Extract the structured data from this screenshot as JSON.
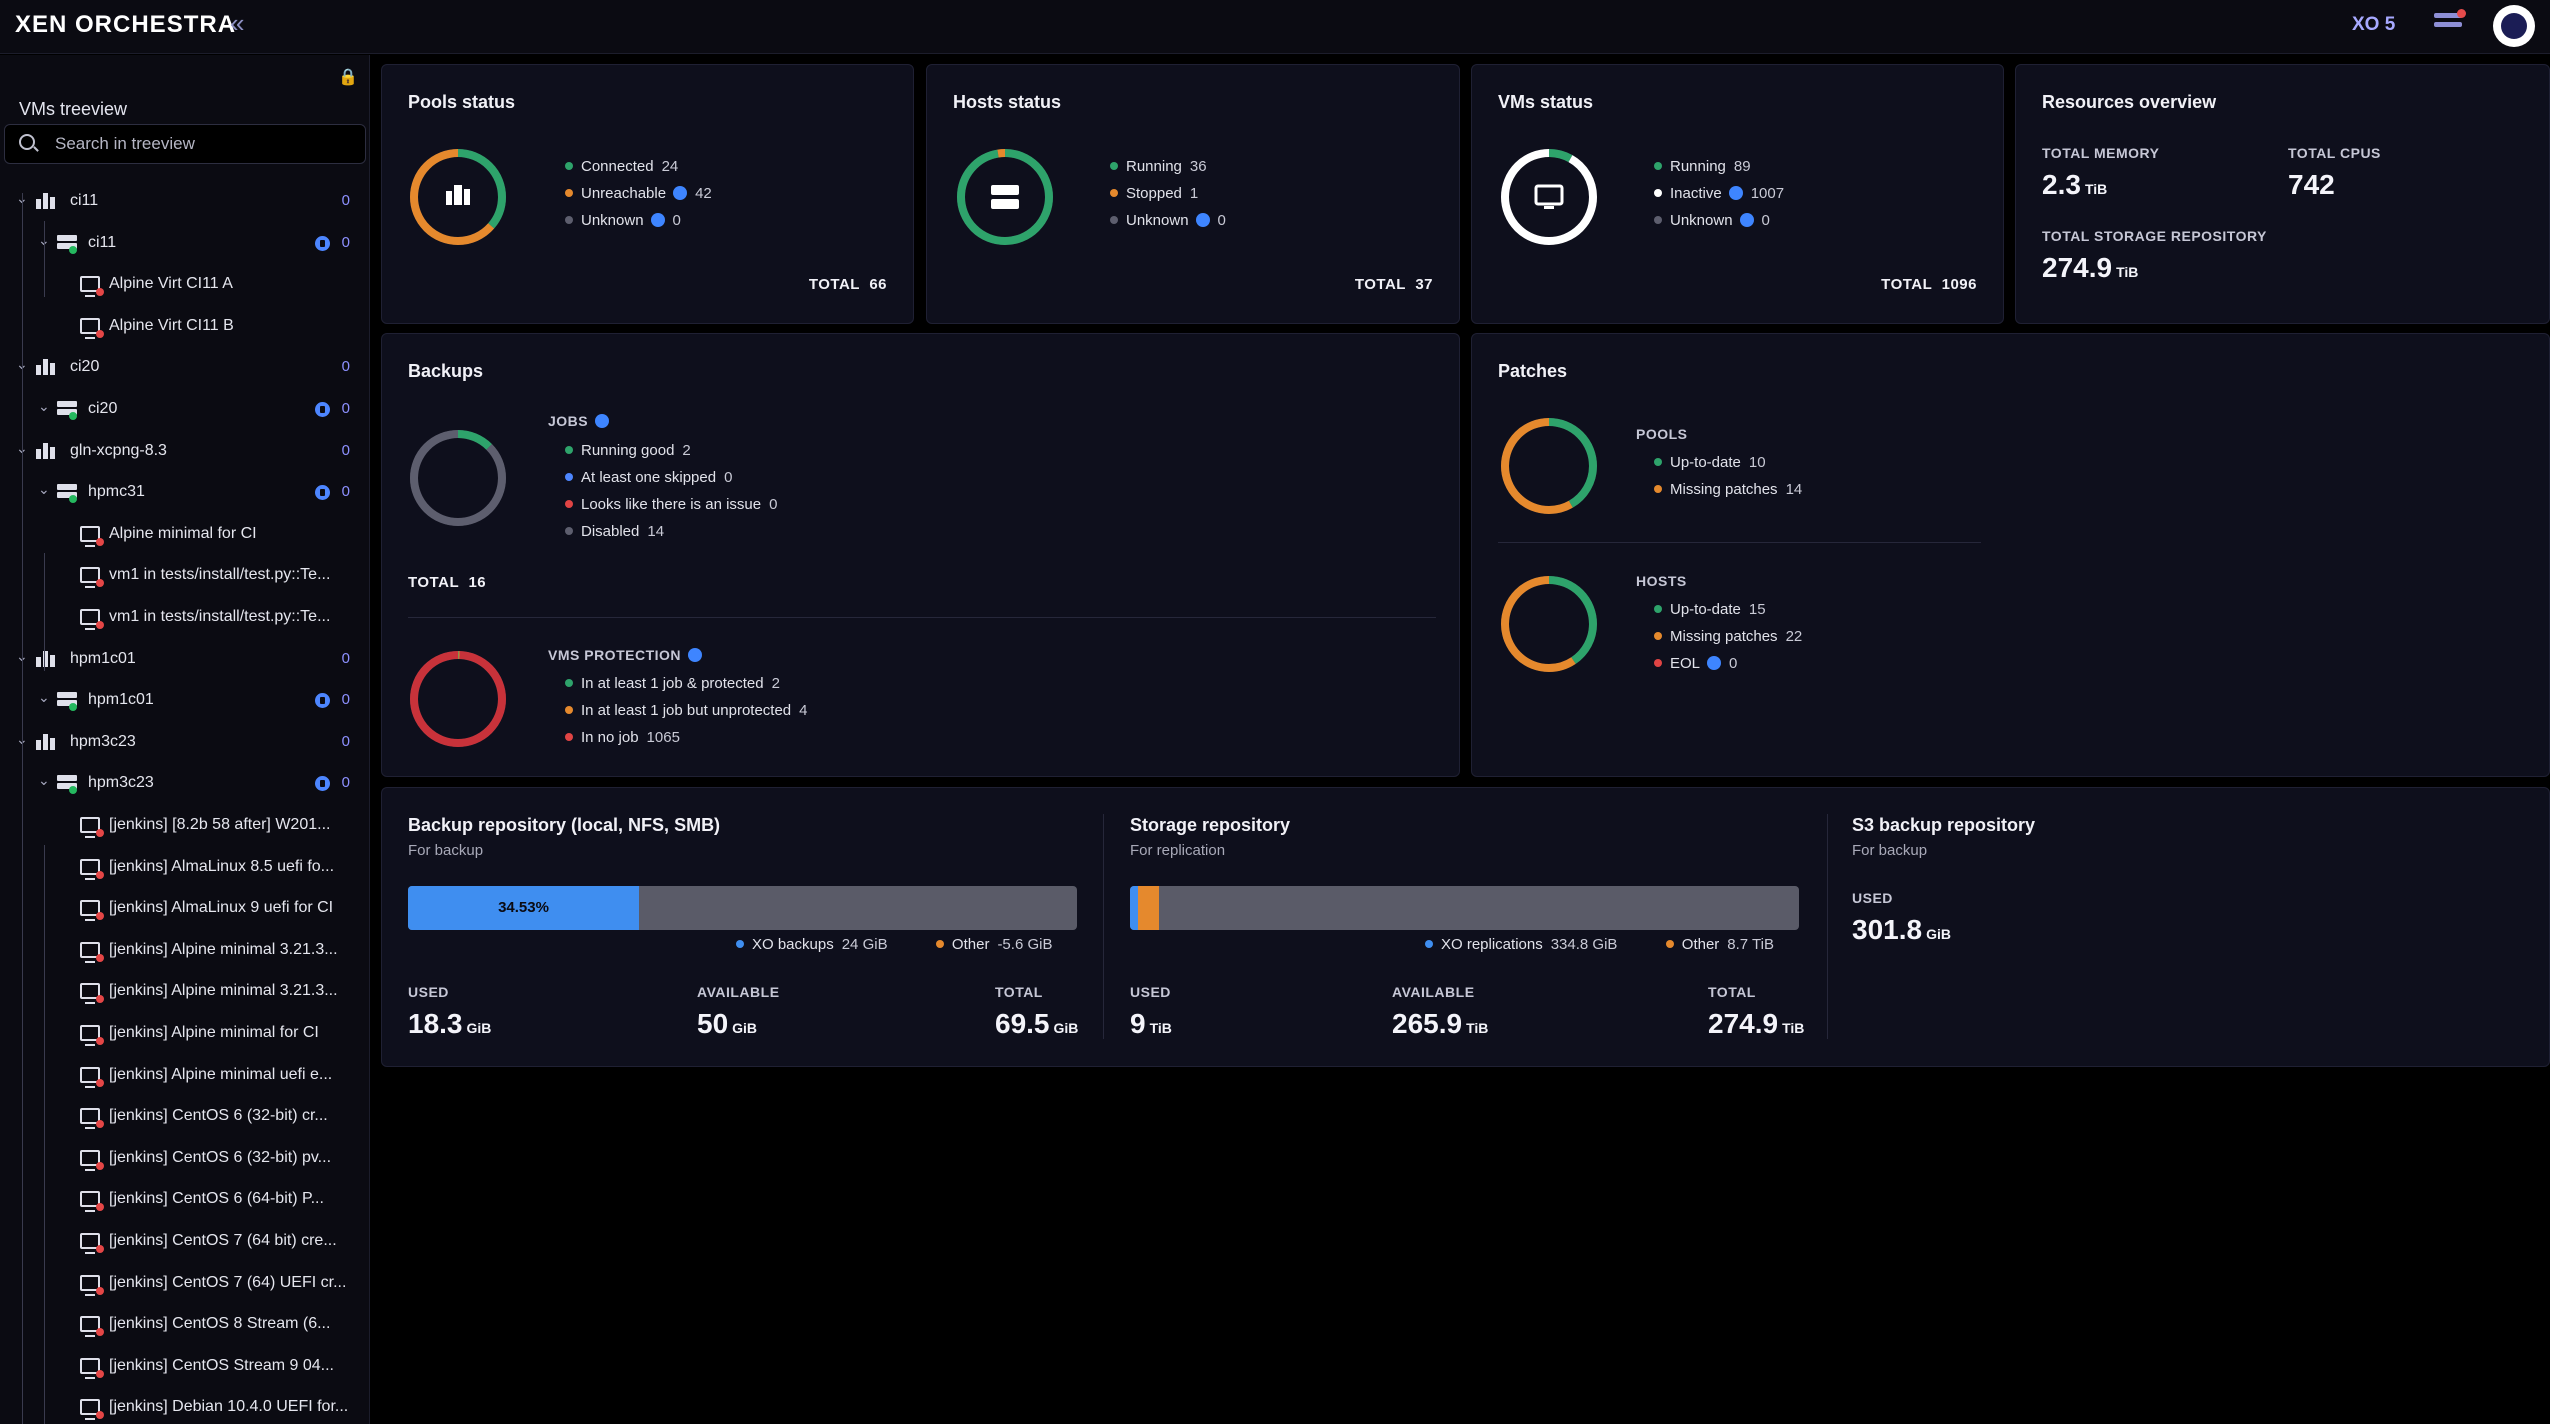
{
  "header": {
    "logo": "XEN ORCHESTRA",
    "version": "XO 5"
  },
  "sidebar": {
    "title": "VMs treeview",
    "search_placeholder": "Search in treeview",
    "rows": [
      {
        "type": "pool",
        "label": "ci11",
        "count": "0",
        "level": 0
      },
      {
        "type": "host",
        "label": "ci11",
        "count": "0",
        "level": 1
      },
      {
        "type": "vm",
        "label": "Alpine Virt CI11 A",
        "level": 2
      },
      {
        "type": "vm",
        "label": "Alpine Virt CI11 B",
        "level": 2
      },
      {
        "type": "pool",
        "label": "ci20",
        "count": "0",
        "level": 0
      },
      {
        "type": "host",
        "label": "ci20",
        "count": "0",
        "level": 1
      },
      {
        "type": "pool",
        "label": "gln-xcpng-8.3",
        "count": "0",
        "level": 0
      },
      {
        "type": "host",
        "label": "hpmc31",
        "count": "0",
        "level": 1
      },
      {
        "type": "vm",
        "label": "Alpine minimal for CI",
        "level": 2
      },
      {
        "type": "vm",
        "label": "vm1 in tests/install/test.py::Te...",
        "level": 2
      },
      {
        "type": "vm",
        "label": "vm1 in tests/install/test.py::Te...",
        "level": 2
      },
      {
        "type": "pool",
        "label": "hpm1c01",
        "count": "0",
        "level": 0
      },
      {
        "type": "host",
        "label": "hpm1c01",
        "count": "0",
        "level": 1
      },
      {
        "type": "pool",
        "label": "hpm3c23",
        "count": "0",
        "level": 0
      },
      {
        "type": "host",
        "label": "hpm3c23",
        "count": "0",
        "level": 1
      },
      {
        "type": "vm",
        "label": "[jenkins] [8.2b 58 after] W201...",
        "level": 2
      },
      {
        "type": "vm",
        "label": "[jenkins] AlmaLinux 8.5 uefi fo...",
        "level": 2
      },
      {
        "type": "vm",
        "label": "[jenkins] AlmaLinux 9 uefi for CI",
        "level": 2
      },
      {
        "type": "vm",
        "label": "[jenkins] Alpine minimal 3.21.3...",
        "level": 2
      },
      {
        "type": "vm",
        "label": "[jenkins] Alpine minimal 3.21.3...",
        "level": 2
      },
      {
        "type": "vm",
        "label": "[jenkins] Alpine minimal for CI",
        "level": 2
      },
      {
        "type": "vm",
        "label": "[jenkins] Alpine minimal uefi e...",
        "level": 2
      },
      {
        "type": "vm",
        "label": "[jenkins] CentOS 6 (32-bit) cr...",
        "level": 2
      },
      {
        "type": "vm",
        "label": "[jenkins] CentOS 6 (32-bit) pv...",
        "level": 2
      },
      {
        "type": "vm",
        "label": "[jenkins] CentOS 6 (64-bit) P...",
        "level": 2
      },
      {
        "type": "vm",
        "label": "[jenkins] CentOS 7 (64 bit) cre...",
        "level": 2
      },
      {
        "type": "vm",
        "label": "[jenkins] CentOS 7 (64) UEFI cr...",
        "level": 2
      },
      {
        "type": "vm",
        "label": "[jenkins] CentOS 8 Stream (6...",
        "level": 2
      },
      {
        "type": "vm",
        "label": "[jenkins] CentOS Stream 9 04...",
        "level": 2
      },
      {
        "type": "vm",
        "label": "[jenkins] Debian 10.4.0 UEFI for...",
        "level": 2
      }
    ]
  },
  "pools_status": {
    "title": "Pools status",
    "items": [
      {
        "label": "Connected",
        "value": "24",
        "color": "#2ea36b"
      },
      {
        "label": "Unreachable",
        "value": "42",
        "color": "#e5892d",
        "info": true
      },
      {
        "label": "Unknown",
        "value": "0",
        "color": "#5d5e6e",
        "info": true
      }
    ],
    "total_label": "TOTAL",
    "total": "66"
  },
  "hosts_status": {
    "title": "Hosts status",
    "items": [
      {
        "label": "Running",
        "value": "36",
        "color": "#2ea36b"
      },
      {
        "label": "Stopped",
        "value": "1",
        "color": "#e5892d"
      },
      {
        "label": "Unknown",
        "value": "0",
        "color": "#5d5e6e",
        "info": true
      }
    ],
    "total_label": "TOTAL",
    "total": "37"
  },
  "vms_status": {
    "title": "VMs status",
    "items": [
      {
        "label": "Running",
        "value": "89",
        "color": "#2ea36b"
      },
      {
        "label": "Inactive",
        "value": "1007",
        "color": "#ffffff",
        "info": true
      },
      {
        "label": "Unknown",
        "value": "0",
        "color": "#5d5e6e",
        "info": true
      }
    ],
    "total_label": "TOTAL",
    "total": "1096"
  },
  "resources": {
    "title": "Resources overview",
    "memory_label": "TOTAL MEMORY",
    "memory_value": "2.3",
    "memory_unit": "TiB",
    "cpus_label": "TOTAL CPUS",
    "cpus_value": "742",
    "storage_label": "TOTAL STORAGE REPOSITORY",
    "storage_value": "274.9",
    "storage_unit": "TiB"
  },
  "backups": {
    "title": "Backups",
    "jobs_label": "JOBS",
    "jobs": [
      {
        "label": "Running good",
        "value": "2",
        "color": "#2ea36b"
      },
      {
        "label": "At least one skipped",
        "value": "0",
        "color": "#4d86ff"
      },
      {
        "label": "Looks like there is an issue",
        "value": "0",
        "color": "#e04444"
      },
      {
        "label": "Disabled",
        "value": "14",
        "color": "#5d5e6e"
      }
    ],
    "jobs_total_label": "TOTAL",
    "jobs_total": "16",
    "protection_label": "VMS PROTECTION",
    "protection": [
      {
        "label": "In at least 1 job & protected",
        "value": "2",
        "color": "#2ea36b"
      },
      {
        "label": "In at least 1 job but unprotected",
        "value": "4",
        "color": "#e5892d"
      },
      {
        "label": "In no job",
        "value": "1065",
        "color": "#e04444"
      }
    ]
  },
  "patches": {
    "title": "Patches",
    "pools_label": "POOLS",
    "pools": [
      {
        "label": "Up-to-date",
        "value": "10",
        "color": "#2ea36b"
      },
      {
        "label": "Missing patches",
        "value": "14",
        "color": "#e5892d"
      }
    ],
    "hosts_label": "HOSTS",
    "hosts": [
      {
        "label": "Up-to-date",
        "value": "15",
        "color": "#2ea36b"
      },
      {
        "label": "Missing patches",
        "value": "22",
        "color": "#e5892d"
      },
      {
        "label": "EOL",
        "value": "0",
        "color": "#e04444",
        "info": true
      }
    ]
  },
  "backup_repo": {
    "title": "Backup repository (local, NFS, SMB)",
    "subtitle": "For backup",
    "percent": "34.53%",
    "fill_fraction": 0.3453,
    "legend_xo": "XO backups",
    "legend_xo_value": "24 GiB",
    "legend_other": "Other",
    "legend_other_value": "-5.6 GiB",
    "used_label": "USED",
    "used_value": "18.3",
    "used_unit": "GiB",
    "available_label": "AVAILABLE",
    "available_value": "50",
    "available_unit": "GiB",
    "total_label": "TOTAL",
    "total_value": "69.5",
    "total_unit": "GiB"
  },
  "storage_repo": {
    "title": "Storage repository",
    "subtitle": "For replication",
    "blue_fraction": 0.012,
    "orange_fraction": 0.032,
    "legend_xo": "XO replications",
    "legend_xo_value": "334.8 GiB",
    "legend_other": "Other",
    "legend_other_value": "8.7 TiB",
    "used_label": "USED",
    "used_value": "9",
    "used_unit": "TiB",
    "available_label": "AVAILABLE",
    "available_value": "265.9",
    "available_unit": "TiB",
    "total_label": "TOTAL",
    "total_value": "274.9",
    "total_unit": "TiB"
  },
  "s3_repo": {
    "title": "S3 backup repository",
    "subtitle": "For backup",
    "used_label": "USED",
    "used_value": "301.8",
    "used_unit": "GiB"
  },
  "colors": {
    "green": "#2ea36b",
    "orange": "#e5892d",
    "red": "#c8323a",
    "blue": "#3f8ef0",
    "grey": "#5d5e6e"
  }
}
